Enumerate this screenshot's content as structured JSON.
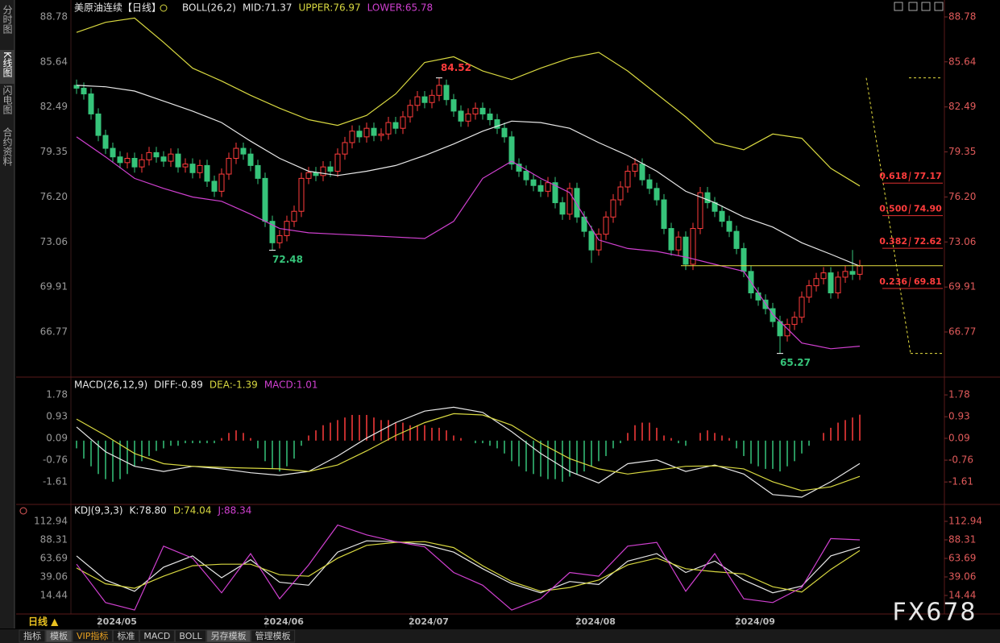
{
  "chart_data": [
    {
      "type": "candlestick",
      "title": "美原油连续【日线】",
      "indicator": "BOLL(26,2)",
      "up_color": "#ff3c3c",
      "down_color": "#36c47a",
      "categories": [
        null,
        null,
        null,
        null,
        null,
        null,
        "2024/05",
        null,
        null,
        null,
        null,
        null,
        null,
        null,
        null,
        null,
        null,
        null,
        null,
        null,
        null,
        null,
        null,
        null,
        null,
        null,
        null,
        null,
        null,
        "2024/06",
        null,
        null,
        null,
        null,
        null,
        null,
        null,
        null,
        null,
        null,
        null,
        null,
        null,
        null,
        null,
        null,
        null,
        null,
        null,
        "2024/07",
        null,
        null,
        null,
        null,
        null,
        null,
        null,
        null,
        null,
        null,
        null,
        null,
        null,
        null,
        null,
        null,
        null,
        null,
        null,
        null,
        null,
        null,
        "2024/08",
        null,
        null,
        null,
        null,
        null,
        null,
        null,
        null,
        null,
        null,
        null,
        null,
        null,
        null,
        null,
        null,
        null,
        null,
        null,
        null,
        null,
        "2024/09",
        null,
        null,
        null,
        null,
        null,
        null,
        null,
        null,
        null,
        null,
        null,
        null,
        null,
        null
      ],
      "open": [
        84.0,
        83.8,
        83.4,
        82.0,
        80.5,
        79.6,
        79.0,
        78.6,
        78.9,
        78.3,
        78.8,
        79.3,
        79.0,
        78.7,
        79.2,
        78.3,
        78.5,
        77.9,
        78.4,
        77.3,
        76.6,
        77.8,
        78.9,
        79.6,
        79.2,
        78.4,
        77.5,
        74.5,
        73.0,
        73.5,
        74.5,
        75.2,
        77.5,
        77.9,
        77.7,
        78.3,
        78.0,
        79.2,
        80.0,
        80.8,
        80.4,
        81.0,
        80.5,
        80.6,
        81.4,
        81.0,
        81.8,
        82.6,
        83.2,
        82.8,
        83.3,
        84.0,
        83.0,
        82.2,
        81.5,
        82.0,
        82.4,
        82.0,
        81.6,
        81.0,
        80.4,
        78.5,
        78.0,
        77.4,
        77.0,
        76.6,
        77.2,
        75.8,
        75.0,
        76.8,
        74.8,
        73.8,
        72.5,
        73.6,
        74.8,
        76.0,
        76.9,
        78.0,
        78.5,
        77.4,
        76.8,
        76.0,
        74.0,
        72.5,
        73.4,
        71.5,
        74.0,
        76.5,
        75.8,
        75.2,
        74.5,
        73.8,
        72.6,
        71.0,
        69.5,
        69.0,
        68.4,
        67.5,
        66.5,
        67.3,
        67.8,
        69.2,
        70.0,
        70.5,
        70.9,
        69.5,
        70.6,
        71.0,
        70.8
      ],
      "high": [
        84.4,
        84.2,
        83.8,
        82.4,
        80.9,
        80.0,
        79.4,
        79.3,
        79.3,
        79.2,
        79.7,
        79.7,
        79.4,
        79.6,
        79.6,
        78.9,
        78.9,
        78.8,
        78.8,
        77.7,
        78.2,
        79.3,
        80.0,
        80.0,
        79.6,
        78.8,
        77.9,
        74.9,
        73.9,
        74.9,
        75.6,
        77.9,
        78.3,
        78.3,
        78.7,
        78.7,
        79.6,
        80.4,
        81.2,
        81.2,
        81.4,
        81.4,
        81.0,
        81.8,
        81.8,
        82.2,
        83.0,
        83.6,
        83.6,
        83.7,
        84.52,
        84.4,
        83.4,
        82.6,
        82.4,
        82.8,
        82.8,
        82.4,
        82.0,
        81.4,
        80.8,
        78.9,
        78.4,
        77.8,
        77.4,
        77.6,
        77.6,
        76.2,
        77.2,
        77.2,
        75.2,
        74.2,
        74.0,
        75.2,
        76.4,
        77.3,
        78.4,
        78.9,
        78.9,
        77.8,
        77.2,
        76.4,
        74.4,
        73.8,
        73.8,
        74.4,
        76.9,
        76.9,
        76.2,
        75.6,
        74.9,
        74.2,
        73.0,
        71.4,
        69.9,
        69.4,
        68.8,
        67.9,
        67.7,
        68.2,
        69.6,
        70.4,
        70.9,
        71.3,
        71.3,
        71.0,
        71.4,
        72.5,
        71.8
      ],
      "low": [
        83.4,
        83.0,
        81.6,
        80.1,
        79.2,
        78.6,
        78.2,
        78.2,
        77.9,
        77.9,
        78.4,
        78.6,
        78.3,
        78.3,
        77.9,
        77.9,
        77.5,
        77.5,
        76.9,
        76.2,
        76.2,
        77.4,
        78.5,
        78.8,
        78.0,
        77.1,
        74.1,
        72.48,
        72.6,
        73.1,
        74.1,
        74.8,
        77.1,
        77.3,
        77.3,
        77.6,
        77.6,
        78.8,
        79.6,
        80.0,
        80.0,
        80.1,
        80.1,
        80.2,
        80.6,
        80.6,
        81.4,
        82.2,
        82.4,
        82.4,
        82.9,
        82.6,
        81.8,
        81.1,
        81.1,
        81.6,
        81.6,
        81.2,
        80.6,
        80.0,
        78.1,
        77.6,
        77.0,
        76.6,
        76.2,
        76.2,
        75.4,
        74.6,
        74.6,
        74.4,
        73.4,
        71.6,
        72.1,
        73.2,
        74.4,
        75.6,
        76.5,
        77.6,
        77.0,
        76.4,
        75.6,
        73.6,
        72.1,
        72.1,
        71.1,
        71.1,
        73.6,
        75.4,
        74.8,
        74.1,
        73.4,
        72.2,
        70.6,
        69.1,
        68.6,
        68.0,
        67.1,
        65.27,
        66.1,
        66.9,
        67.4,
        68.8,
        69.6,
        70.1,
        69.1,
        69.1,
        70.2,
        70.4,
        70.4
      ],
      "close": [
        83.8,
        83.4,
        82.0,
        80.5,
        79.6,
        79.0,
        78.6,
        78.9,
        78.3,
        78.8,
        79.3,
        79.0,
        78.7,
        79.2,
        78.3,
        78.5,
        77.9,
        78.4,
        77.3,
        76.6,
        77.8,
        78.9,
        79.6,
        79.2,
        78.4,
        77.5,
        74.5,
        73.0,
        73.5,
        74.5,
        75.2,
        77.5,
        77.9,
        77.7,
        78.3,
        78.0,
        79.2,
        80.0,
        80.8,
        80.4,
        81.0,
        80.5,
        80.6,
        81.4,
        81.0,
        81.8,
        82.6,
        83.2,
        82.8,
        83.3,
        84.0,
        83.0,
        82.2,
        81.5,
        82.0,
        82.4,
        82.0,
        81.6,
        81.0,
        80.4,
        78.5,
        78.0,
        77.4,
        77.0,
        76.6,
        77.2,
        75.8,
        75.0,
        76.8,
        74.8,
        73.8,
        72.5,
        73.6,
        74.8,
        76.0,
        76.9,
        78.0,
        78.5,
        77.4,
        76.8,
        76.0,
        74.0,
        72.5,
        73.4,
        71.5,
        74.0,
        76.5,
        75.8,
        75.2,
        74.5,
        73.8,
        72.6,
        71.0,
        69.5,
        69.0,
        68.4,
        67.5,
        66.5,
        67.3,
        67.8,
        69.2,
        70.0,
        70.5,
        70.9,
        69.5,
        70.6,
        71.0,
        70.8,
        71.4
      ],
      "x": [
        0,
        4,
        8,
        12,
        16,
        20,
        24,
        28,
        32,
        36,
        40,
        44,
        48,
        52,
        56,
        60,
        64,
        68,
        72,
        76,
        80,
        84,
        88,
        92,
        96,
        100,
        104,
        108
      ],
      "series": [
        {
          "name": "MID:71.37",
          "color": "#e8e8e8",
          "values": [
            84.0,
            83.9,
            83.6,
            82.9,
            82.2,
            81.4,
            80.1,
            78.9,
            78.0,
            77.7,
            78.0,
            78.4,
            79.1,
            79.9,
            80.8,
            81.5,
            81.4,
            81.0,
            80.0,
            79.1,
            78.0,
            76.6,
            75.8,
            74.8,
            74.1,
            73.0,
            72.2,
            71.37
          ]
        },
        {
          "name": "UPPER:76.97",
          "color": "#d8d840",
          "values": [
            87.7,
            88.4,
            88.7,
            87.0,
            85.2,
            84.3,
            83.3,
            82.4,
            81.6,
            81.2,
            81.9,
            83.4,
            85.6,
            86.0,
            85.0,
            84.4,
            85.2,
            85.9,
            86.3,
            85.0,
            83.4,
            81.8,
            80.0,
            79.5,
            80.6,
            80.3,
            78.2,
            76.97
          ]
        },
        {
          "name": "LOWER:65.78",
          "color": "#d040d0",
          "values": [
            80.4,
            79.0,
            77.5,
            76.8,
            76.2,
            75.9,
            75.0,
            74.0,
            73.7,
            73.6,
            73.5,
            73.4,
            73.3,
            74.5,
            77.5,
            78.7,
            77.5,
            76.5,
            73.2,
            72.6,
            72.4,
            72.0,
            71.5,
            71.0,
            68.0,
            66.0,
            65.6,
            65.78
          ]
        }
      ],
      "fibonacci": [
        {
          "ratio": "0.618",
          "price": 77.17,
          "price_label": "77.17"
        },
        {
          "ratio": "0.500",
          "price": 74.9,
          "price_label": "74.90"
        },
        {
          "ratio": "0.382",
          "price": 72.62,
          "price_label": "72.62"
        },
        {
          "ratio": "0.236",
          "price": 69.81,
          "price_label": "69.81"
        }
      ],
      "ylim": [
        63.73,
        89.68
      ],
      "yticks": [
        88.78,
        85.64,
        82.49,
        79.35,
        {
          "value": 76.2,
          "label": "76.20"
        },
        73.06,
        69.91,
        66.77
      ]
    },
    {
      "type": "macd",
      "title": "MACD(26,12,9)",
      "x": [
        0,
        4,
        8,
        12,
        16,
        20,
        24,
        28,
        32,
        36,
        40,
        44,
        48,
        52,
        56,
        60,
        64,
        68,
        72,
        76,
        80,
        84,
        88,
        92,
        96,
        100,
        104,
        108
      ],
      "series": [
        {
          "name": "DIFF:-0.89",
          "color": "#e8e8e8",
          "values": [
            0.53,
            -0.43,
            -1.0,
            -1.2,
            -1.0,
            -1.1,
            -1.25,
            -1.35,
            -1.2,
            -0.6,
            0.1,
            0.7,
            1.15,
            1.3,
            1.1,
            0.35,
            -0.5,
            -1.2,
            -1.65,
            -0.9,
            -0.75,
            -1.2,
            -0.95,
            -1.3,
            -2.1,
            -2.2,
            -1.6,
            -0.89
          ]
        },
        {
          "name": "DEA:-1.39",
          "color": "#d8d840",
          "values": [
            0.84,
            0.2,
            -0.5,
            -0.9,
            -1.0,
            -1.04,
            -1.07,
            -1.1,
            -1.2,
            -0.95,
            -0.4,
            0.2,
            0.7,
            1.05,
            1.0,
            0.6,
            -0.1,
            -0.7,
            -1.1,
            -1.3,
            -1.15,
            -1.0,
            -0.98,
            -1.1,
            -1.6,
            -1.95,
            -1.8,
            -1.39
          ]
        }
      ],
      "histogram": {
        "name": "MACD:1.01",
        "color": "#d040d0",
        "up_color": "#ff3c3c",
        "down_color": "#36c47a",
        "values": [
          -0.3,
          -0.7,
          -1.0,
          -1.3,
          -1.5,
          -1.6,
          -1.5,
          -1.3,
          -1.0,
          -0.8,
          -0.6,
          -0.4,
          -0.3,
          -0.2,
          -0.2,
          -0.1,
          -0.1,
          -0.1,
          -0.1,
          -0.1,
          0.1,
          0.3,
          0.4,
          0.3,
          0.1,
          -0.3,
          -0.8,
          -1.1,
          -1.2,
          -1.0,
          -0.7,
          -0.2,
          0.2,
          0.4,
          0.6,
          0.7,
          0.8,
          0.9,
          1.0,
          1.0,
          1.0,
          0.9,
          0.8,
          0.8,
          0.7,
          0.7,
          0.6,
          0.6,
          0.6,
          0.5,
          0.5,
          0.4,
          0.2,
          0.1,
          0.0,
          -0.1,
          -0.1,
          -0.2,
          -0.3,
          -0.5,
          -0.8,
          -1.0,
          -1.2,
          -1.3,
          -1.4,
          -1.5,
          -1.5,
          -1.6,
          -1.4,
          -1.3,
          -1.2,
          -1.0,
          -0.8,
          -0.6,
          -0.3,
          -0.1,
          0.3,
          0.6,
          0.7,
          0.7,
          0.5,
          0.2,
          0.1,
          -0.1,
          -0.2,
          0.0,
          0.3,
          0.4,
          0.3,
          0.2,
          0.1,
          -0.3,
          -0.6,
          -0.9,
          -1.0,
          -1.1,
          -1.1,
          -1.2,
          -1.0,
          -0.8,
          -0.5,
          -0.2,
          0.0,
          0.3,
          0.5,
          0.7,
          0.8,
          0.9,
          1.01
        ]
      },
      "ylim": [
        -2.42,
        2.41
      ],
      "yticks": [
        1.78,
        0.93,
        0.09,
        -0.76,
        -1.61
      ]
    },
    {
      "type": "line",
      "title": "KDJ(9,3,3)",
      "x": [
        0,
        4,
        8,
        12,
        16,
        20,
        24,
        28,
        32,
        36,
        40,
        44,
        48,
        52,
        56,
        60,
        64,
        68,
        72,
        76,
        80,
        84,
        88,
        92,
        96,
        100,
        104,
        108
      ],
      "series": [
        {
          "name": "K:78.80",
          "color": "#e8e8e8",
          "values": [
            67,
            35,
            20,
            52,
            67,
            38,
            62,
            32,
            28,
            72,
            87,
            86,
            82,
            72,
            50,
            30,
            18,
            33,
            29,
            60,
            70,
            45,
            60,
            35,
            18,
            27,
            67,
            78.8
          ]
        },
        {
          "name": "D:74.04",
          "color": "#d8d840",
          "values": [
            51,
            30,
            24,
            40,
            54,
            56,
            56,
            42,
            40,
            64,
            81,
            85,
            86,
            78,
            54,
            33,
            20,
            25,
            35,
            55,
            64,
            50,
            46,
            43,
            26,
            19,
            49,
            74.04
          ]
        },
        {
          "name": "J:88.34",
          "color": "#d040d0",
          "values": [
            56,
            5,
            -5,
            80,
            64,
            18,
            70,
            10,
            55,
            108,
            95,
            86,
            79,
            45,
            28,
            -5,
            10,
            45,
            40,
            80,
            85,
            20,
            70,
            10,
            5,
            25,
            90,
            88.34
          ]
        }
      ],
      "ylim": [
        -10.2,
        133.3
      ],
      "yticks": [
        112.94,
        88.31,
        63.69,
        39.06,
        14.44
      ]
    }
  ],
  "ui": {
    "sidebar_tabs": [
      "分时图",
      "K线图",
      "闪电图",
      "合约资料"
    ],
    "period": "日线 ▲",
    "bottom_tabs": [
      "指标",
      "模板",
      "VIP指标",
      "标准",
      "MACD",
      "BOLL",
      "另存模板",
      "管理模板"
    ],
    "watermark": "FX678"
  }
}
